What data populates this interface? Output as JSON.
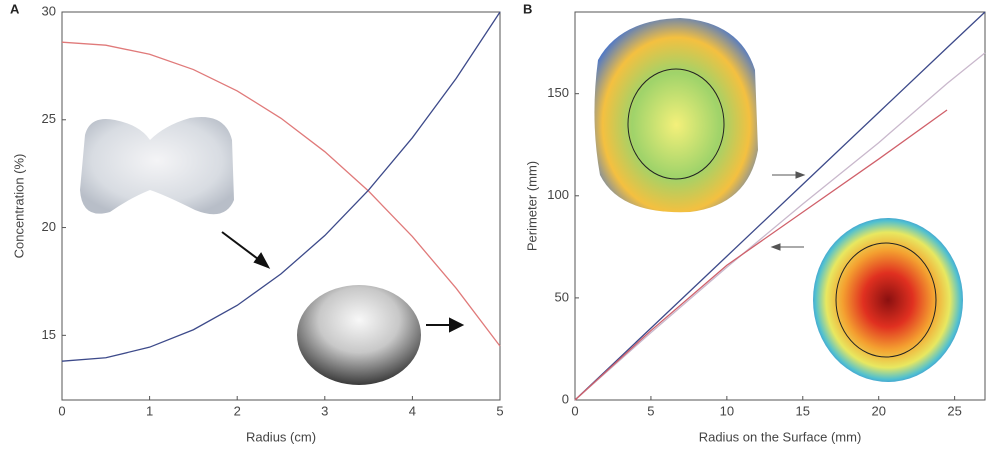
{
  "chart_data": [
    {
      "type": "line",
      "panel_label": "A",
      "x_label": "Radius (cm)",
      "y_label": "Concentration (%)",
      "x": [
        0,
        0.5,
        1,
        1.5,
        2,
        2.5,
        3,
        3.5,
        4,
        4.5,
        5
      ],
      "series": [
        {
          "color": "#e07a7a",
          "values": [
            28.6,
            28.46,
            28.04,
            27.33,
            26.34,
            25.07,
            23.52,
            21.69,
            19.58,
            17.18,
            14.5
          ]
        },
        {
          "color": "#3d4a8a",
          "values": [
            13.8,
            13.96,
            14.45,
            15.26,
            16.39,
            17.85,
            19.63,
            21.74,
            24.17,
            26.92,
            30
          ]
        }
      ],
      "xlim": [
        0,
        5
      ],
      "xticks": [
        0,
        1,
        2,
        3,
        4,
        5
      ],
      "ylim": [
        12,
        30
      ],
      "yticks": [
        15,
        20,
        25,
        30
      ]
    },
    {
      "type": "line",
      "panel_label": "B",
      "x_label": "Radius on the Surface (mm)",
      "y_label": "Perimeter (mm)",
      "x": [
        0,
        5,
        10,
        15,
        20,
        24.5,
        27
      ],
      "series": [
        {
          "color": "#3d4a8a",
          "values": [
            0,
            35.2,
            70.4,
            105.6,
            140.8,
            172.5,
            190
          ]
        },
        {
          "color": "#c9b8cc",
          "values": [
            0,
            33,
            65,
            96,
            126,
            155,
            170
          ]
        },
        {
          "color": "#d0606a",
          "values": [
            0,
            34,
            66,
            92,
            118,
            142,
            null
          ]
        }
      ],
      "xlim": [
        0,
        27
      ],
      "xticks": [
        0,
        5,
        10,
        15,
        20,
        25
      ],
      "ylim": [
        0,
        190
      ],
      "yticks": [
        0,
        50,
        100,
        150
      ]
    }
  ]
}
